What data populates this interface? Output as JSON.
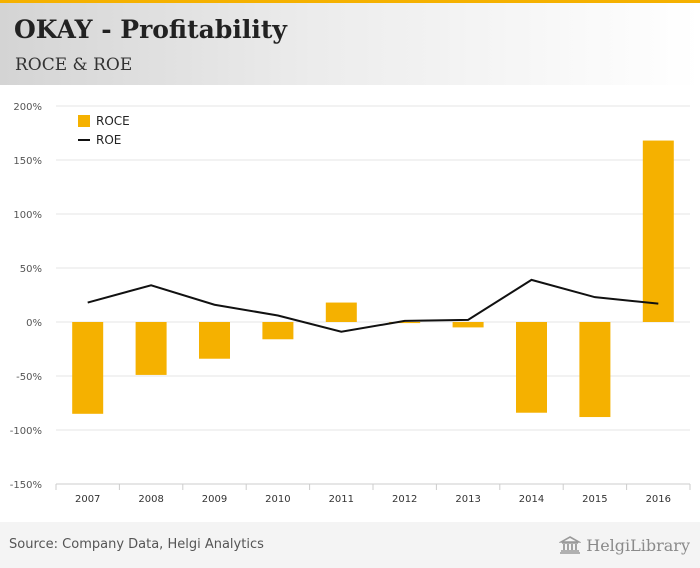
{
  "header": {
    "title": "OKAY - Profitability",
    "subtitle": "ROCE & ROE"
  },
  "footer": {
    "source": "Source: Company Data, Helgi Analytics",
    "logo_text": "HelgiLibrary"
  },
  "colors": {
    "accent": "#f5b100",
    "roe_line": "#111111",
    "grid": "#e5e5e5",
    "axis_text": "#555555"
  },
  "chart_data": {
    "type": "bar",
    "title": "",
    "xlabel": "",
    "ylabel": "",
    "categories": [
      "2007",
      "2008",
      "2009",
      "2010",
      "2011",
      "2012",
      "2013",
      "2014",
      "2015",
      "2016"
    ],
    "series": [
      {
        "name": "ROCE",
        "type": "bar",
        "color": "#f5b100",
        "values": [
          -85,
          -49,
          -34,
          -16,
          18,
          -1,
          -5,
          -84,
          -88,
          168
        ]
      },
      {
        "name": "ROE",
        "type": "line",
        "color": "#111111",
        "values": [
          18,
          34,
          16,
          6,
          -9,
          1,
          2,
          39,
          23,
          17
        ]
      }
    ],
    "ylim": [
      -150,
      200
    ],
    "yticks": [
      -150,
      -100,
      -50,
      0,
      50,
      100,
      150,
      200
    ],
    "ytick_labels": [
      "-150%",
      "-100%",
      "-50%",
      "0%",
      "50%",
      "100%",
      "150%",
      "200%"
    ],
    "grid": true,
    "legend_position": "top-left"
  }
}
